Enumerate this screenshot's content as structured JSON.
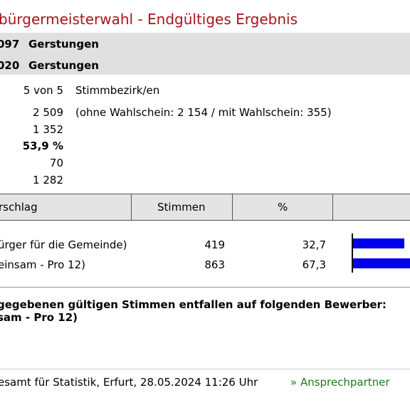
{
  "page": {
    "title": "bürgermeisterwahl - Endgültiges Ergebnis",
    "accent_color": "#a8131b"
  },
  "region": {
    "row1_code": "097",
    "row1_name": "Gerstungen",
    "row2_code": "020",
    "row2_name": "Gerstungen"
  },
  "stats": {
    "districts_value": "5 von 5",
    "districts_label": "Stimmbezirk/en",
    "eligible_value": "2 509",
    "eligible_note": "(ohne Wahlschein: 2 154 / mit Wahlschein: 355)",
    "voters_value": "1 352",
    "turnout_value": "53,9 %",
    "invalid_value": "70",
    "valid_value": "1 282"
  },
  "table": {
    "headers": [
      "rschlag",
      "Stimmen",
      "%",
      ""
    ],
    "rows": [
      {
        "name": "ürger für die Gemeinde)",
        "votes": "419",
        "percent": "32,7",
        "share": 32.7
      },
      {
        "name": "einsam - Pro 12)",
        "votes": "863",
        "percent": "67,3",
        "share": 67.3
      }
    ],
    "bar_color": "#0000ee"
  },
  "result_note": {
    "line1": "gegebenen gültigen Stimmen entfallen auf folgenden Bewerber:",
    "line2": "sam - Pro 12)"
  },
  "footer": {
    "source": "esamt für Statistik, Erfurt, 28.05.2024 11:26 Uhr",
    "contact_link": "» Ansprechpartner"
  }
}
